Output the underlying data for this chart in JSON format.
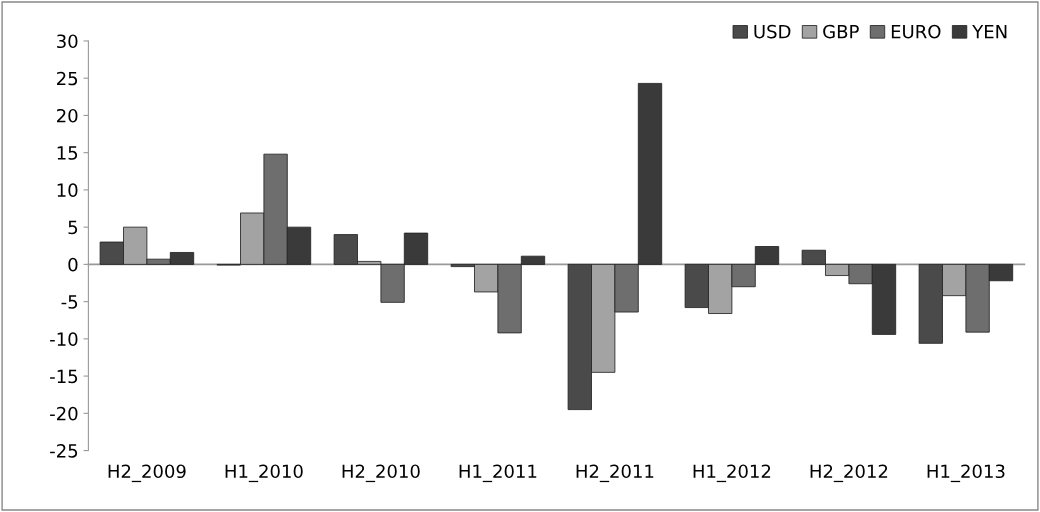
{
  "chart_data": {
    "type": "bar",
    "categories": [
      "H2_2009",
      "H1_2010",
      "H2_2010",
      "H1_2011",
      "H2_2011",
      "H1_2012",
      "H2_2012",
      "H1_2013"
    ],
    "series": [
      {
        "name": "USD",
        "color": "#4a4a4a",
        "values": [
          3.0,
          -0.1,
          4.0,
          -0.3,
          -19.5,
          -5.8,
          1.9,
          -10.6
        ]
      },
      {
        "name": "GBP",
        "color": "#a3a3a3",
        "values": [
          5.0,
          6.9,
          0.4,
          -3.7,
          -14.5,
          -6.6,
          -1.5,
          -4.2
        ]
      },
      {
        "name": "EURO",
        "color": "#6e6e6e",
        "values": [
          0.7,
          14.8,
          -5.1,
          -9.2,
          -6.4,
          -3.0,
          -2.6,
          -9.1
        ]
      },
      {
        "name": "YEN",
        "color": "#3a3a3a",
        "values": [
          1.6,
          5.0,
          4.2,
          1.1,
          24.3,
          2.4,
          -9.4,
          -2.2
        ]
      }
    ],
    "ylim": [
      -25,
      30
    ],
    "yticks": [
      -25,
      -20,
      -15,
      -10,
      -5,
      0,
      5,
      10,
      15,
      20,
      25,
      30
    ],
    "legend": "top right"
  }
}
